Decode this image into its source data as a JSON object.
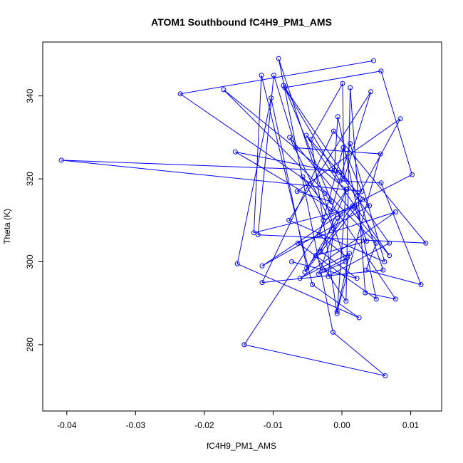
{
  "chart_data": {
    "type": "line",
    "title": "ATOM1 Southbound fC4H9_PM1_AMS",
    "xlabel": "fC4H9_PM1_AMS",
    "ylabel": "Theta (K)",
    "xlim": [
      -0.0435,
      0.0145
    ],
    "ylim": [
      264,
      353
    ],
    "x_ticks": [
      -0.04,
      -0.03,
      -0.02,
      -0.01,
      0.0,
      0.01
    ],
    "x_tick_labels": [
      "-0.04",
      "-0.03",
      "-0.02",
      "-0.01",
      "0.00",
      "0.01"
    ],
    "y_ticks": [
      280,
      300,
      320,
      340
    ],
    "y_tick_labels": [
      "280",
      "300",
      "320",
      "340"
    ],
    "grid": false,
    "legend": "none",
    "marker": "open-circle",
    "line_style": "connected",
    "series_color": "#0000ff",
    "series": [
      {
        "x": [
          0.0046,
          -0.0235,
          -0.0025,
          0.0078,
          0.0034,
          0.0012,
          0.0006,
          -0.0038,
          0.0036,
          0.0019,
          -0.0128,
          -0.0117,
          -0.0043,
          0.0025,
          -0.0152,
          -0.0103,
          -0.0051,
          0.0016,
          0.0085,
          -0.0065,
          -0.0015,
          -0.0083,
          0.0057,
          0.0102,
          -0.0027,
          -0.0057,
          -0.0016,
          0.0012,
          0.0062,
          -0.0077,
          0.0042,
          0.0003,
          0.0001,
          -0.0045,
          -0.0007,
          0.0006,
          -0.0172,
          0.005,
          0.0035,
          0.0115,
          0.0057,
          -0.0003,
          -0.0085,
          0.0023,
          0.006,
          -0.0116,
          -0.0012,
          0.0122,
          -0.0122,
          -0.0099,
          -0.0067,
          0.0056,
          -0.0007,
          0.0011,
          -0.0061,
          0.0078,
          -0.0064,
          0.005,
          -0.0006,
          -0.0011,
          -0.0408,
          0.0029,
          0.0002,
          -0.0033,
          0.0008,
          -0.0026,
          -0.0073,
          0.0022,
          -0.0031,
          0.0007,
          -0.0142,
          0.0063,
          -0.0013,
          -0.0092,
          0.0005,
          -0.0034,
          -0.0002,
          -0.0155,
          -0.0004,
          0.0069,
          -0.002,
          -0.0012,
          -0.0076,
          0.0069,
          -0.0052,
          0.004,
          -0.0116,
          0.003,
          -0.0054,
          -0.0006
        ],
        "y": [
          348.5,
          340.5,
          316.5,
          291.0,
          292.5,
          342.0,
          290.5,
          301.5,
          305.0,
          313.0,
          307.0,
          345.0,
          294.5,
          286.5,
          299.5,
          339.5,
          298.5,
          313.5,
          334.5,
          317.0,
          314.5,
          342.0,
          346.0,
          321.0,
          310.0,
          320.5,
          312.0,
          328.5,
          300.0,
          310.0,
          341.0,
          320.0,
          343.0,
          329.5,
          287.5,
          317.5,
          341.5,
          304.5,
          298.0,
          294.5,
          319.0,
          319.5,
          342.5,
          316.0,
          298.0,
          295.0,
          331.5,
          304.5,
          306.5,
          345.0,
          327.5,
          326.0,
          288.0,
          302.0,
          296.0,
          312.0,
          304.5,
          291.0,
          335.0,
          322.0,
          324.5,
          317.0,
          327.5,
          306.5,
          301.0,
          298.0,
          300.0,
          296.0,
          302.5,
          317.5,
          280.0,
          272.5,
          283.0,
          349.0,
          300.0,
          297.0,
          311.5,
          326.5,
          321.5,
          304.5,
          296.5,
          308.0,
          330.0,
          301.5,
          330.5,
          313.5,
          299.0,
          315.0,
          297.5,
          310.5
        ]
      }
    ]
  }
}
